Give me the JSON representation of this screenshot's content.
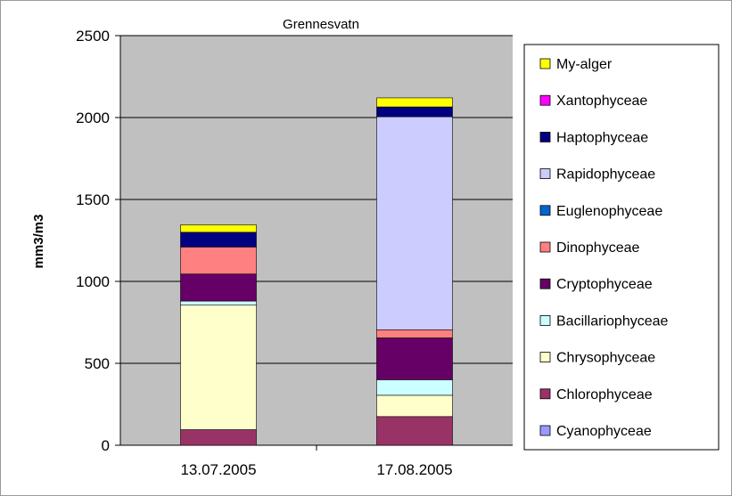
{
  "chart_data": {
    "type": "bar",
    "stacked": true,
    "title": "Grennesvatn",
    "xlabel": "",
    "ylabel": "mm3/m3",
    "ylim": [
      0,
      2500
    ],
    "yticks": [
      0,
      500,
      1000,
      1500,
      2000,
      2500
    ],
    "categories": [
      "13.07.2005",
      "17.08.2005"
    ],
    "grid": true,
    "plot_background": "#c0c0c0",
    "legend_position": "right",
    "series": [
      {
        "name": "Cyanophyceae",
        "color": "#9999ff",
        "values": [
          0,
          0
        ]
      },
      {
        "name": "Chlorophyceae",
        "color": "#993366",
        "values": [
          95,
          175
        ]
      },
      {
        "name": "Chrysophyceae",
        "color": "#ffffcc",
        "values": [
          760,
          130
        ]
      },
      {
        "name": "Bacillariophyceae",
        "color": "#ccffff",
        "values": [
          25,
          95
        ]
      },
      {
        "name": "Cryptophyceae",
        "color": "#660066",
        "values": [
          165,
          255
        ]
      },
      {
        "name": "Dinophyceae",
        "color": "#ff8080",
        "values": [
          165,
          50
        ]
      },
      {
        "name": "Euglenophyceae",
        "color": "#0066cc",
        "values": [
          0,
          0
        ]
      },
      {
        "name": "Rapidophyceae",
        "color": "#ccccff",
        "values": [
          0,
          1300
        ]
      },
      {
        "name": "Haptophyceae",
        "color": "#000080",
        "values": [
          90,
          60
        ]
      },
      {
        "name": "Xantophyceae",
        "color": "#ff00ff",
        "values": [
          0,
          0
        ]
      },
      {
        "name": "My-alger",
        "color": "#ffff00",
        "values": [
          45,
          55
        ]
      }
    ]
  }
}
